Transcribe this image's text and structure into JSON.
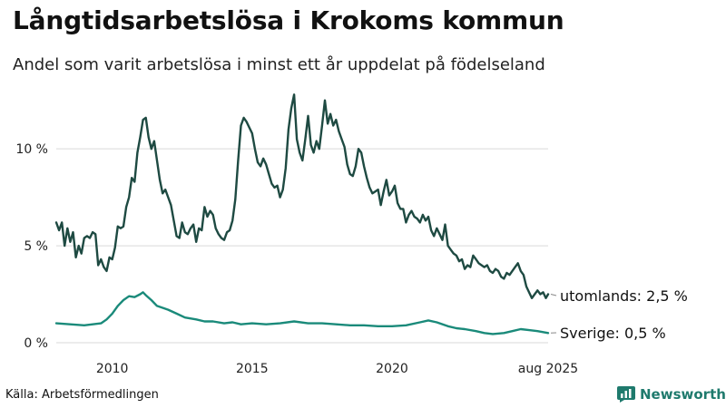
{
  "header": {
    "title": "Långtidsarbetslösa i Krokoms kommun",
    "subtitle": "Andel som varit arbetslösa i minst ett år uppdelat på födelseland"
  },
  "footer": {
    "source": "Källa: Arbetsförmedlingen",
    "brand": "Newsworthy"
  },
  "colors": {
    "utomlands": "#1e4a42",
    "sverige": "#1a8a7a",
    "grid": "#d9d9d9",
    "brand": "#1f7a6d"
  },
  "chart_data": {
    "type": "line",
    "title": "Långtidsarbetslösa i Krokoms kommun",
    "subtitle": "Andel som varit arbetslösa i minst ett år uppdelat på födelseland",
    "xlabel": "",
    "ylabel": "",
    "x_range": [
      2008.0,
      2025.58
    ],
    "ylim": [
      0,
      13
    ],
    "grid": true,
    "y_ticks": [
      {
        "value": 0,
        "label": "0 %"
      },
      {
        "value": 5,
        "label": "5 %"
      },
      {
        "value": 10,
        "label": "10 %"
      }
    ],
    "x_ticks": [
      {
        "value": 2010,
        "label": "2010"
      },
      {
        "value": 2015,
        "label": "2015"
      },
      {
        "value": 2020,
        "label": "2020"
      },
      {
        "value": 2025.58,
        "label": "aug 2025"
      }
    ],
    "series": [
      {
        "name": "utomlands",
        "end_label": "utomlands: 2,5 %",
        "color": "#1e4a42",
        "points": [
          [
            2008.0,
            6.2
          ],
          [
            2008.1,
            5.8
          ],
          [
            2008.2,
            6.2
          ],
          [
            2008.3,
            5.0
          ],
          [
            2008.4,
            5.9
          ],
          [
            2008.5,
            5.2
          ],
          [
            2008.6,
            5.7
          ],
          [
            2008.7,
            4.4
          ],
          [
            2008.8,
            5.0
          ],
          [
            2008.9,
            4.6
          ],
          [
            2009.0,
            5.4
          ],
          [
            2009.1,
            5.5
          ],
          [
            2009.2,
            5.4
          ],
          [
            2009.3,
            5.7
          ],
          [
            2009.4,
            5.6
          ],
          [
            2009.5,
            4.0
          ],
          [
            2009.6,
            4.3
          ],
          [
            2009.7,
            3.9
          ],
          [
            2009.8,
            3.7
          ],
          [
            2009.9,
            4.4
          ],
          [
            2010.0,
            4.3
          ],
          [
            2010.1,
            4.9
          ],
          [
            2010.2,
            6.0
          ],
          [
            2010.3,
            5.9
          ],
          [
            2010.4,
            6.0
          ],
          [
            2010.5,
            7.0
          ],
          [
            2010.6,
            7.5
          ],
          [
            2010.7,
            8.5
          ],
          [
            2010.8,
            8.3
          ],
          [
            2010.9,
            9.8
          ],
          [
            2011.0,
            10.6
          ],
          [
            2011.1,
            11.5
          ],
          [
            2011.2,
            11.6
          ],
          [
            2011.3,
            10.6
          ],
          [
            2011.4,
            10.0
          ],
          [
            2011.5,
            10.4
          ],
          [
            2011.6,
            9.4
          ],
          [
            2011.7,
            8.4
          ],
          [
            2011.8,
            7.7
          ],
          [
            2011.9,
            7.9
          ],
          [
            2012.0,
            7.5
          ],
          [
            2012.1,
            7.1
          ],
          [
            2012.2,
            6.3
          ],
          [
            2012.3,
            5.5
          ],
          [
            2012.4,
            5.4
          ],
          [
            2012.5,
            6.2
          ],
          [
            2012.6,
            5.7
          ],
          [
            2012.7,
            5.6
          ],
          [
            2012.8,
            5.9
          ],
          [
            2012.9,
            6.1
          ],
          [
            2013.0,
            5.2
          ],
          [
            2013.1,
            5.9
          ],
          [
            2013.2,
            5.8
          ],
          [
            2013.3,
            7.0
          ],
          [
            2013.4,
            6.5
          ],
          [
            2013.5,
            6.8
          ],
          [
            2013.6,
            6.6
          ],
          [
            2013.7,
            5.9
          ],
          [
            2013.8,
            5.6
          ],
          [
            2013.9,
            5.4
          ],
          [
            2014.0,
            5.3
          ],
          [
            2014.1,
            5.7
          ],
          [
            2014.2,
            5.8
          ],
          [
            2014.3,
            6.3
          ],
          [
            2014.4,
            7.4
          ],
          [
            2014.5,
            9.4
          ],
          [
            2014.6,
            11.2
          ],
          [
            2014.7,
            11.6
          ],
          [
            2014.8,
            11.4
          ],
          [
            2014.9,
            11.1
          ],
          [
            2015.0,
            10.8
          ],
          [
            2015.1,
            10.0
          ],
          [
            2015.2,
            9.3
          ],
          [
            2015.3,
            9.1
          ],
          [
            2015.4,
            9.5
          ],
          [
            2015.5,
            9.2
          ],
          [
            2015.6,
            8.7
          ],
          [
            2015.7,
            8.2
          ],
          [
            2015.8,
            8.0
          ],
          [
            2015.9,
            8.1
          ],
          [
            2016.0,
            7.5
          ],
          [
            2016.1,
            7.9
          ],
          [
            2016.2,
            9.0
          ],
          [
            2016.3,
            11.0
          ],
          [
            2016.4,
            12.1
          ],
          [
            2016.5,
            12.8
          ],
          [
            2016.6,
            10.5
          ],
          [
            2016.7,
            9.8
          ],
          [
            2016.8,
            9.4
          ],
          [
            2016.9,
            10.5
          ],
          [
            2017.0,
            11.7
          ],
          [
            2017.1,
            10.2
          ],
          [
            2017.2,
            9.8
          ],
          [
            2017.3,
            10.4
          ],
          [
            2017.4,
            10.0
          ],
          [
            2017.5,
            11.2
          ],
          [
            2017.6,
            12.5
          ],
          [
            2017.7,
            11.3
          ],
          [
            2017.8,
            11.8
          ],
          [
            2017.9,
            11.2
          ],
          [
            2018.0,
            11.5
          ],
          [
            2018.1,
            10.9
          ],
          [
            2018.2,
            10.5
          ],
          [
            2018.3,
            10.1
          ],
          [
            2018.4,
            9.2
          ],
          [
            2018.5,
            8.7
          ],
          [
            2018.6,
            8.6
          ],
          [
            2018.7,
            9.1
          ],
          [
            2018.8,
            10.0
          ],
          [
            2018.9,
            9.8
          ],
          [
            2019.0,
            9.1
          ],
          [
            2019.1,
            8.5
          ],
          [
            2019.2,
            8.0
          ],
          [
            2019.3,
            7.7
          ],
          [
            2019.4,
            7.8
          ],
          [
            2019.5,
            7.9
          ],
          [
            2019.6,
            7.1
          ],
          [
            2019.7,
            7.8
          ],
          [
            2019.8,
            8.4
          ],
          [
            2019.9,
            7.6
          ],
          [
            2020.0,
            7.8
          ],
          [
            2020.1,
            8.1
          ],
          [
            2020.2,
            7.2
          ],
          [
            2020.3,
            6.9
          ],
          [
            2020.4,
            6.9
          ],
          [
            2020.5,
            6.2
          ],
          [
            2020.6,
            6.6
          ],
          [
            2020.7,
            6.8
          ],
          [
            2020.8,
            6.5
          ],
          [
            2020.9,
            6.4
          ],
          [
            2021.0,
            6.2
          ],
          [
            2021.1,
            6.6
          ],
          [
            2021.2,
            6.3
          ],
          [
            2021.3,
            6.5
          ],
          [
            2021.4,
            5.8
          ],
          [
            2021.5,
            5.5
          ],
          [
            2021.6,
            5.9
          ],
          [
            2021.7,
            5.6
          ],
          [
            2021.8,
            5.3
          ],
          [
            2021.9,
            6.1
          ],
          [
            2022.0,
            5.0
          ],
          [
            2022.1,
            4.8
          ],
          [
            2022.2,
            4.6
          ],
          [
            2022.3,
            4.5
          ],
          [
            2022.4,
            4.2
          ],
          [
            2022.5,
            4.3
          ],
          [
            2022.6,
            3.8
          ],
          [
            2022.7,
            4.0
          ],
          [
            2022.8,
            3.9
          ],
          [
            2022.9,
            4.5
          ],
          [
            2023.0,
            4.3
          ],
          [
            2023.1,
            4.1
          ],
          [
            2023.2,
            4.0
          ],
          [
            2023.3,
            3.9
          ],
          [
            2023.4,
            4.0
          ],
          [
            2023.5,
            3.7
          ],
          [
            2023.6,
            3.6
          ],
          [
            2023.7,
            3.8
          ],
          [
            2023.8,
            3.7
          ],
          [
            2023.9,
            3.4
          ],
          [
            2024.0,
            3.3
          ],
          [
            2024.1,
            3.6
          ],
          [
            2024.2,
            3.5
          ],
          [
            2024.3,
            3.7
          ],
          [
            2024.4,
            3.9
          ],
          [
            2024.5,
            4.1
          ],
          [
            2024.6,
            3.7
          ],
          [
            2024.7,
            3.5
          ],
          [
            2024.8,
            2.9
          ],
          [
            2024.9,
            2.6
          ],
          [
            2025.0,
            2.3
          ],
          [
            2025.1,
            2.5
          ],
          [
            2025.2,
            2.7
          ],
          [
            2025.3,
            2.5
          ],
          [
            2025.4,
            2.6
          ],
          [
            2025.5,
            2.3
          ],
          [
            2025.58,
            2.5
          ]
        ]
      },
      {
        "name": "Sverige",
        "end_label": "Sverige: 0,5 %",
        "color": "#1a8a7a",
        "points": [
          [
            2008.0,
            1.0
          ],
          [
            2008.5,
            0.95
          ],
          [
            2009.0,
            0.9
          ],
          [
            2009.3,
            0.95
          ],
          [
            2009.6,
            1.0
          ],
          [
            2009.8,
            1.2
          ],
          [
            2010.0,
            1.5
          ],
          [
            2010.2,
            1.9
          ],
          [
            2010.4,
            2.2
          ],
          [
            2010.6,
            2.4
          ],
          [
            2010.8,
            2.35
          ],
          [
            2011.0,
            2.5
          ],
          [
            2011.1,
            2.6
          ],
          [
            2011.2,
            2.45
          ],
          [
            2011.4,
            2.2
          ],
          [
            2011.6,
            1.9
          ],
          [
            2011.8,
            1.8
          ],
          [
            2012.0,
            1.7
          ],
          [
            2012.3,
            1.5
          ],
          [
            2012.6,
            1.3
          ],
          [
            2013.0,
            1.2
          ],
          [
            2013.3,
            1.1
          ],
          [
            2013.6,
            1.1
          ],
          [
            2014.0,
            1.0
          ],
          [
            2014.3,
            1.05
          ],
          [
            2014.6,
            0.95
          ],
          [
            2015.0,
            1.0
          ],
          [
            2015.5,
            0.95
          ],
          [
            2016.0,
            1.0
          ],
          [
            2016.5,
            1.1
          ],
          [
            2017.0,
            1.0
          ],
          [
            2017.5,
            1.0
          ],
          [
            2018.0,
            0.95
          ],
          [
            2018.5,
            0.9
          ],
          [
            2019.0,
            0.9
          ],
          [
            2019.5,
            0.85
          ],
          [
            2020.0,
            0.85
          ],
          [
            2020.5,
            0.9
          ],
          [
            2021.0,
            1.05
          ],
          [
            2021.3,
            1.15
          ],
          [
            2021.6,
            1.05
          ],
          [
            2022.0,
            0.85
          ],
          [
            2022.3,
            0.75
          ],
          [
            2022.6,
            0.7
          ],
          [
            2023.0,
            0.6
          ],
          [
            2023.3,
            0.5
          ],
          [
            2023.6,
            0.45
          ],
          [
            2024.0,
            0.5
          ],
          [
            2024.3,
            0.6
          ],
          [
            2024.6,
            0.7
          ],
          [
            2024.9,
            0.65
          ],
          [
            2025.2,
            0.6
          ],
          [
            2025.58,
            0.5
          ]
        ]
      }
    ]
  }
}
